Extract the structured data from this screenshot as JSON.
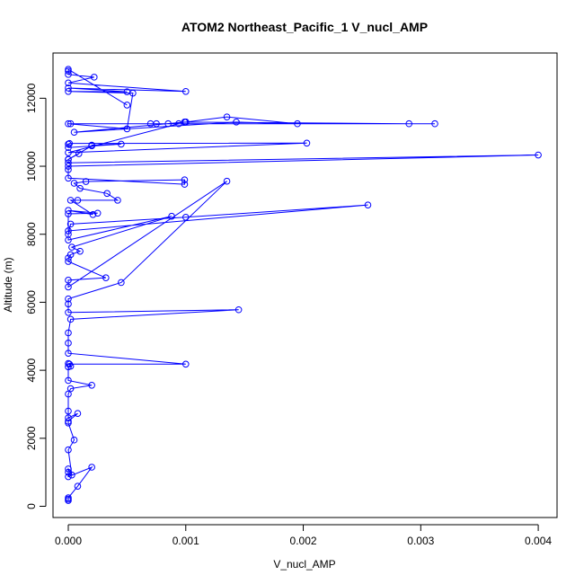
{
  "chart_data": {
    "type": "line",
    "title": "ATOM2 Northeast_Pacific_1 V_nucl_AMP",
    "xlabel": "V_nucl_AMP",
    "ylabel": "Altitude (m)",
    "xlim": [
      -0.00013,
      0.00416
    ],
    "ylim": [
      -330,
      13330
    ],
    "x_ticks": [
      0.0,
      0.001,
      0.002,
      0.003,
      0.004
    ],
    "x_tick_labels": [
      "0.000",
      "0.001",
      "0.002",
      "0.003",
      "0.004"
    ],
    "y_ticks": [
      0,
      2000,
      4000,
      6000,
      8000,
      10000,
      12000
    ],
    "y_tick_labels": [
      "0",
      "2000",
      "4000",
      "6000",
      "8000",
      "10000",
      "12000"
    ],
    "grid": false,
    "legend": "none",
    "colors": {
      "series": "#0000ff",
      "axes": "#000000"
    },
    "series": [
      {
        "x": [
          0,
          0,
          0,
          8e-05,
          0.0002,
          0,
          0,
          0,
          3e-05,
          0,
          5e-05,
          0,
          0,
          8e-05,
          0,
          0,
          0,
          2e-05,
          0.0002,
          0,
          0,
          2e-05,
          0,
          1e-05,
          0.001,
          0,
          0,
          0,
          2e-05,
          0.00145,
          0,
          0,
          0,
          0.00045,
          0.00135,
          0,
          0,
          0.00032,
          0,
          0,
          2e-05,
          0.0001,
          3e-05,
          0.00088,
          0,
          0,
          2e-05,
          0.001,
          0.00255,
          0,
          0,
          0.00025,
          0,
          0.00021,
          2e-05,
          8e-05,
          0.00042,
          0.00033,
          0.0001,
          5e-05,
          0.00015,
          0.00099,
          0.00099,
          0,
          0,
          0,
          0.004,
          0,
          0,
          9e-05,
          0,
          0.0002,
          0.0002,
          0.00045,
          0,
          0,
          1e-05,
          0.00203,
          0,
          0.00094,
          2e-05,
          0.0007,
          0.00085,
          0.001,
          0.00099,
          5e-05,
          0.00143,
          0.00195,
          0.00135,
          0.001,
          0.0029,
          0.00312,
          0.00075,
          0,
          0.0005,
          0.00055,
          0,
          0.0005,
          0,
          0.001,
          0,
          0.00022,
          0,
          0,
          0,
          0.0005
        ],
        "y": [
          170,
          210,
          250,
          590,
          1150,
          870,
          1000,
          1100,
          920,
          1660,
          1950,
          2450,
          2500,
          2730,
          2600,
          2800,
          3300,
          3460,
          3560,
          3700,
          4100,
          4120,
          4200,
          4180,
          4180,
          4500,
          4800,
          5100,
          5500,
          5780,
          5700,
          5950,
          6100,
          6580,
          9560,
          6450,
          6650,
          6720,
          7200,
          7300,
          7400,
          7500,
          7620,
          8530,
          7830,
          8000,
          8300,
          8500,
          8860,
          8100,
          8600,
          8620,
          8700,
          8580,
          9000,
          9000,
          9000,
          9200,
          9350,
          9500,
          9550,
          9600,
          9470,
          9650,
          9900,
          10000,
          10330,
          10100,
          10200,
          10370,
          10200,
          10600,
          10620,
          10650,
          10550,
          10650,
          10670,
          10680,
          10400,
          11250,
          11250,
          11250,
          11250,
          11300,
          11300,
          11000,
          11300,
          11250,
          11450,
          11300,
          11250,
          11250,
          11250,
          11250,
          11100,
          12150,
          12200,
          12190,
          12300,
          12200,
          12450,
          12620,
          12700,
          12800,
          12850,
          11800
        ]
      }
    ]
  }
}
